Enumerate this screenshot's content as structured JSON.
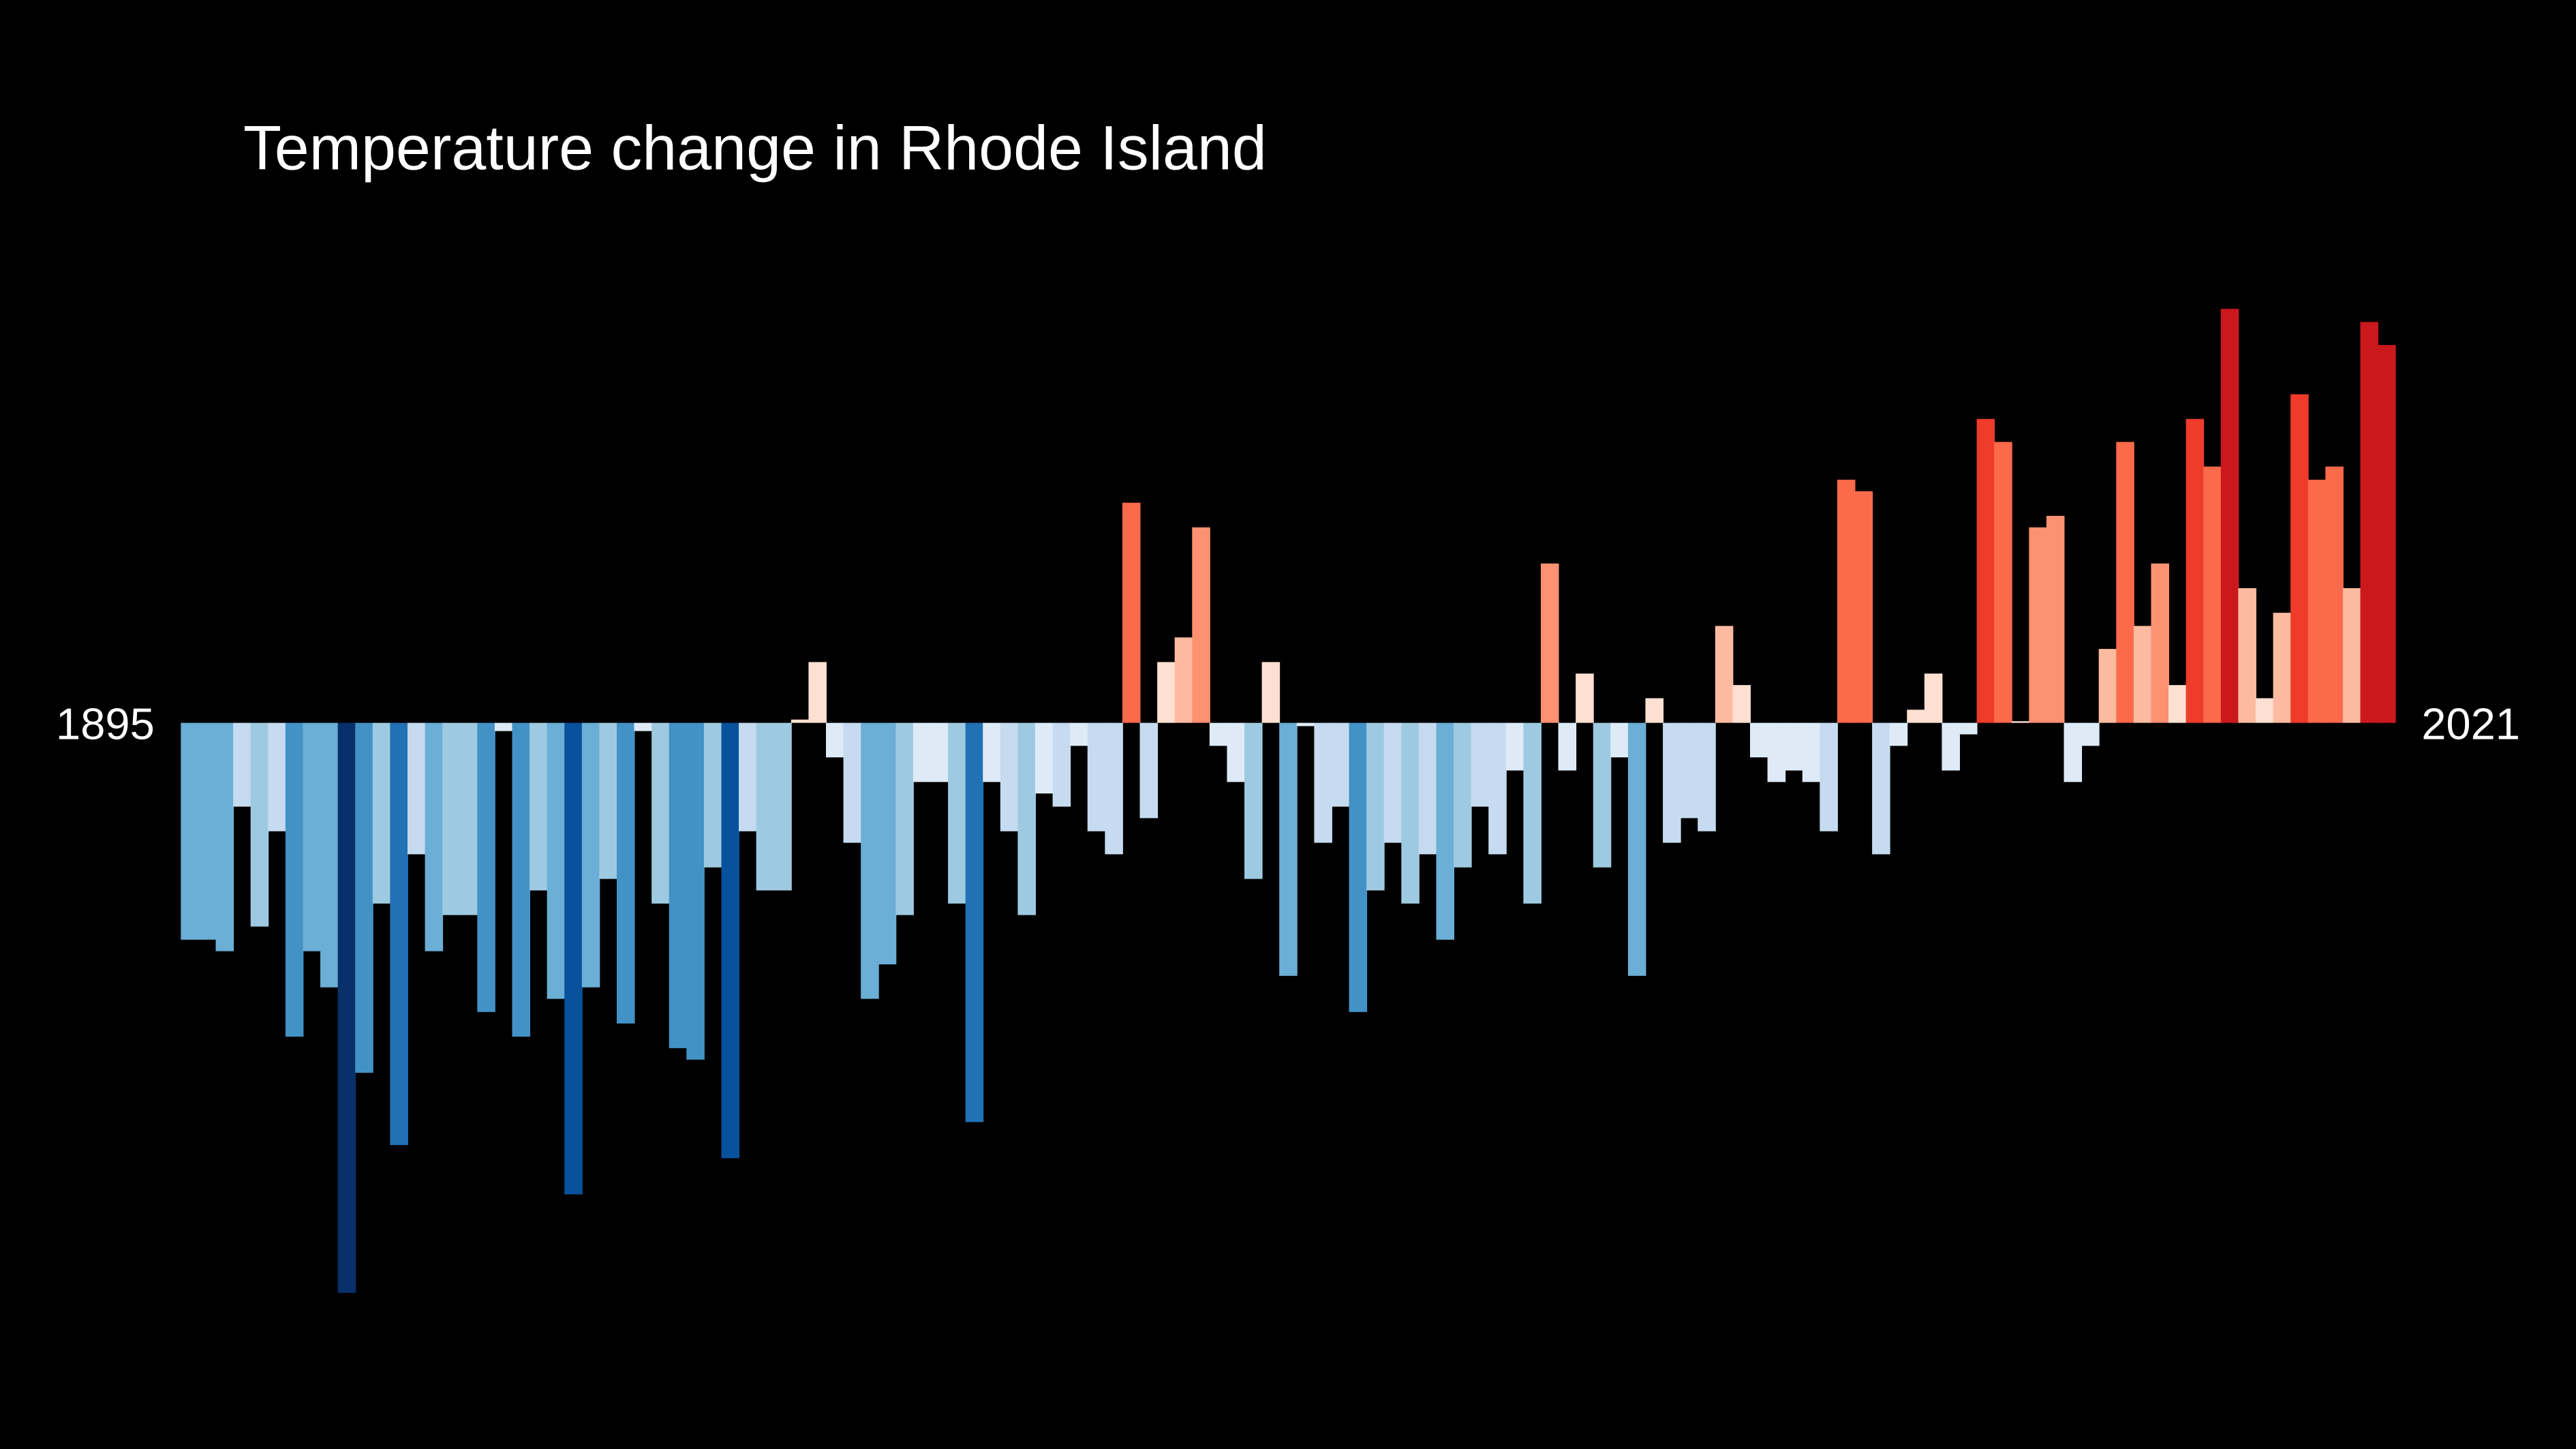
{
  "chart_data": {
    "type": "bar",
    "title": "Temperature change in Rhode Island",
    "categories": [
      "1895",
      null,
      null,
      null,
      null,
      null,
      null,
      null,
      null,
      null,
      null,
      null,
      null,
      null,
      null,
      null,
      null,
      null,
      null,
      null,
      null,
      null,
      null,
      null,
      null,
      null,
      null,
      null,
      null,
      null,
      null,
      null,
      null,
      null,
      null,
      null,
      null,
      null,
      null,
      null,
      null,
      null,
      null,
      null,
      null,
      null,
      null,
      null,
      null,
      null,
      null,
      null,
      null,
      null,
      null,
      null,
      null,
      null,
      null,
      null,
      null,
      null,
      null,
      null,
      null,
      null,
      null,
      null,
      null,
      null,
      null,
      null,
      null,
      null,
      null,
      null,
      null,
      null,
      null,
      null,
      null,
      null,
      null,
      null,
      null,
      null,
      null,
      null,
      null,
      null,
      null,
      null,
      null,
      null,
      null,
      null,
      null,
      null,
      null,
      null,
      null,
      null,
      null,
      null,
      null,
      null,
      null,
      null,
      null,
      null,
      null,
      null,
      null,
      null,
      null,
      null,
      null,
      null,
      null,
      null,
      null,
      null,
      null,
      null,
      null,
      null,
      "2021"
    ],
    "values": [
      -1.32,
      -1.32,
      -1.39,
      -0.51,
      -1.24,
      -0.66,
      -1.91,
      -1.39,
      -1.61,
      -3.47,
      -2.13,
      -1.1,
      -2.57,
      -0.8,
      -1.39,
      -1.17,
      -1.17,
      -1.76,
      -0.05,
      -1.91,
      -1.02,
      -1.68,
      -2.87,
      -1.61,
      -0.95,
      -1.83,
      -0.05,
      -1.1,
      -1.98,
      -2.05,
      -0.88,
      -2.65,
      -0.66,
      -1.02,
      -1.02,
      0.02,
      0.37,
      -0.21,
      -0.73,
      -1.68,
      -1.47,
      -1.17,
      -0.36,
      -0.36,
      -1.1,
      -2.43,
      -0.36,
      -0.66,
      -1.17,
      -0.43,
      -0.51,
      -0.14,
      -0.66,
      -0.8,
      1.34,
      -0.58,
      0.37,
      0.52,
      1.19,
      -0.14,
      -0.36,
      -0.95,
      0.37,
      -1.54,
      -0.02,
      -0.73,
      -0.51,
      -1.76,
      -1.02,
      -0.73,
      -1.1,
      -0.8,
      -1.32,
      -0.88,
      -0.51,
      -0.8,
      -0.29,
      -1.1,
      0.97,
      -0.29,
      0.3,
      -0.88,
      -0.21,
      -1.54,
      0.15,
      -0.73,
      -0.58,
      -0.66,
      0.59,
      0.23,
      -0.21,
      -0.36,
      -0.29,
      -0.36,
      -0.66,
      1.48,
      1.41,
      -0.8,
      -0.14,
      0.08,
      0.3,
      -0.29,
      -0.07,
      1.85,
      1.71,
      0.01,
      1.19,
      1.26,
      -0.36,
      -0.14,
      0.45,
      1.71,
      0.59,
      0.97,
      0.23,
      1.85,
      1.56,
      2.52,
      0.82,
      0.15,
      0.67,
      2.0,
      1.48,
      1.56,
      0.82,
      2.44,
      2.3
    ]
  }
}
